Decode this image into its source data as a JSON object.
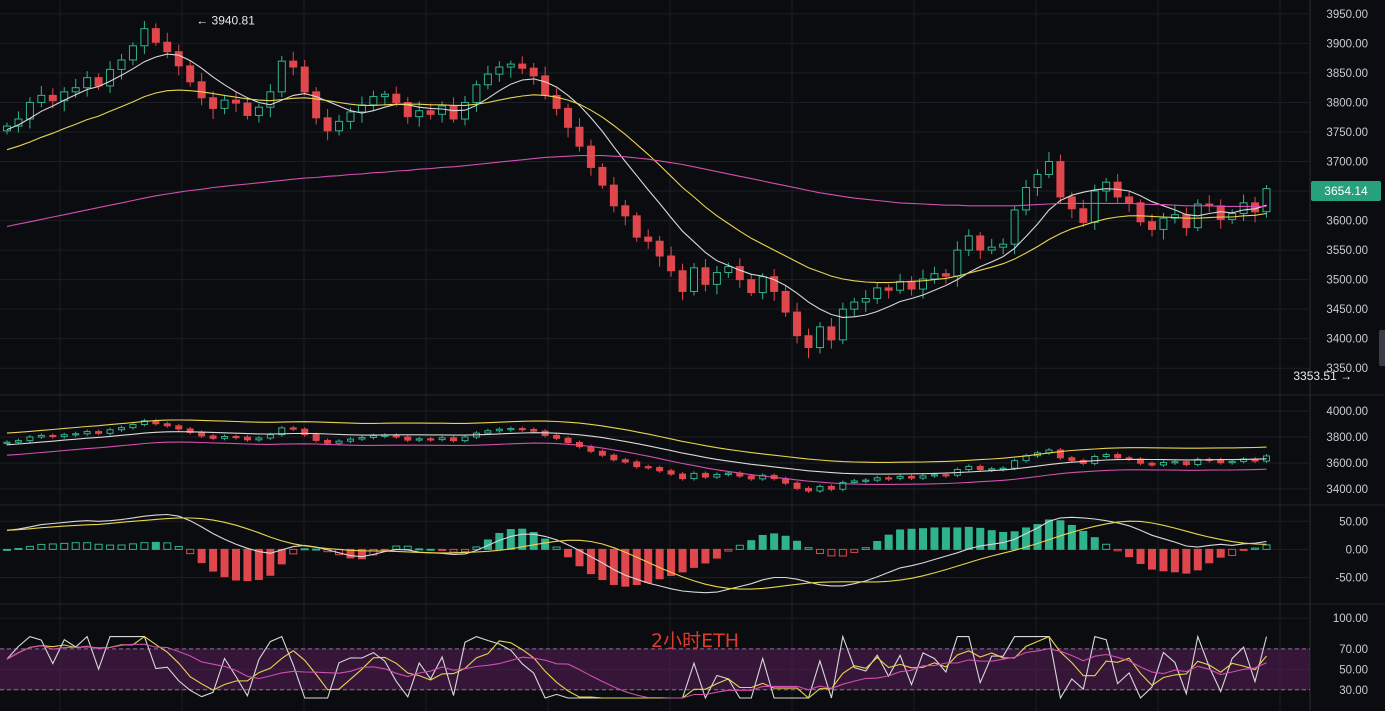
{
  "colors": {
    "background": "#0b0c0f",
    "grid": "#1b1e24",
    "up": "#2fb38c",
    "down": "#e0474c",
    "ma_fast": "#d8d8d8",
    "ma_mid": "#e8d44d",
    "ma_slow": "#d04fb0",
    "rsi_band": "#5a1f5c",
    "badge": "#26a17b",
    "watermark": "#e03a2f"
  },
  "watermark": {
    "text": "2小时ETH"
  },
  "price_badge": {
    "text": "3654.14"
  },
  "chart_data": [
    {
      "type": "candlestick",
      "panel": "price",
      "ylim": [
        3330,
        3960
      ],
      "y_ticks": [
        "3950.00",
        "3900.00",
        "3850.00",
        "3800.00",
        "3750.00",
        "3700.00",
        "3650.00",
        "3600.00",
        "3550.00",
        "3500.00",
        "3450.00",
        "3400.00",
        "3350.00"
      ],
      "y_tick_values": [
        3950,
        3900,
        3850,
        3800,
        3750,
        3700,
        3650,
        3600,
        3550,
        3500,
        3450,
        3400,
        3350
      ],
      "last_price": 3654.14,
      "annotations": [
        {
          "text": "← 3940.81",
          "value": 3940.81,
          "bar": 16,
          "kind": "high"
        },
        {
          "text": "3353.51 →",
          "value": 3353.51,
          "bar": 118,
          "kind": "low"
        }
      ],
      "closes": [
        3760,
        3772,
        3800,
        3812,
        3803,
        3818,
        3825,
        3842,
        3828,
        3856,
        3872,
        3896,
        3925,
        3902,
        3886,
        3862,
        3835,
        3808,
        3790,
        3804,
        3799,
        3778,
        3792,
        3818,
        3870,
        3860,
        3818,
        3774,
        3752,
        3768,
        3784,
        3796,
        3810,
        3814,
        3800,
        3776,
        3786,
        3780,
        3794,
        3772,
        3800,
        3830,
        3848,
        3860,
        3865,
        3858,
        3845,
        3812,
        3790,
        3758,
        3726,
        3690,
        3660,
        3625,
        3608,
        3572,
        3565,
        3540,
        3515,
        3480,
        3520,
        3492,
        3512,
        3522,
        3500,
        3478,
        3505,
        3480,
        3445,
        3405,
        3385,
        3420,
        3398,
        3450,
        3462,
        3468,
        3486,
        3482,
        3497,
        3484,
        3501,
        3510,
        3506,
        3550,
        3574,
        3550,
        3555,
        3560,
        3618,
        3656,
        3678,
        3700,
        3640,
        3620,
        3597,
        3650,
        3665,
        3640,
        3630,
        3598,
        3585,
        3604,
        3610,
        3588,
        3628,
        3625,
        3602,
        3612,
        3630,
        3615,
        3654.14
      ],
      "ma_fast": [
        3754,
        3762,
        3773,
        3785,
        3794,
        3804,
        3813,
        3822,
        3827,
        3836,
        3846,
        3857,
        3869,
        3877,
        3882,
        3880,
        3871,
        3858,
        3843,
        3830,
        3818,
        3808,
        3800,
        3796,
        3804,
        3812,
        3815,
        3810,
        3802,
        3794,
        3786,
        3782,
        3786,
        3792,
        3797,
        3796,
        3792,
        3790,
        3789,
        3786,
        3787,
        3795,
        3807,
        3820,
        3831,
        3838,
        3840,
        3835,
        3826,
        3812,
        3795,
        3774,
        3751,
        3725,
        3700,
        3676,
        3652,
        3629,
        3605,
        3582,
        3564,
        3546,
        3532,
        3524,
        3516,
        3509,
        3506,
        3500,
        3490,
        3477,
        3462,
        3450,
        3441,
        3436,
        3437,
        3440,
        3446,
        3454,
        3463,
        3468,
        3474,
        3482,
        3490,
        3500,
        3512,
        3522,
        3530,
        3539,
        3553,
        3573,
        3594,
        3618,
        3634,
        3643,
        3648,
        3652,
        3654,
        3653,
        3650,
        3642,
        3632,
        3625,
        3618,
        3610,
        3608,
        3612,
        3615,
        3613,
        3618,
        3620,
        3626
      ],
      "ma_mid": [
        3720,
        3726,
        3733,
        3741,
        3748,
        3756,
        3763,
        3771,
        3777,
        3785,
        3793,
        3801,
        3810,
        3816,
        3820,
        3821,
        3820,
        3818,
        3815,
        3812,
        3809,
        3806,
        3804,
        3803,
        3805,
        3807,
        3808,
        3806,
        3803,
        3800,
        3797,
        3795,
        3795,
        3796,
        3797,
        3797,
        3797,
        3796,
        3796,
        3795,
        3795,
        3797,
        3800,
        3804,
        3808,
        3811,
        3813,
        3812,
        3809,
        3804,
        3797,
        3787,
        3775,
        3761,
        3746,
        3729,
        3712,
        3694,
        3675,
        3656,
        3640,
        3623,
        3608,
        3595,
        3582,
        3570,
        3560,
        3550,
        3540,
        3530,
        3520,
        3513,
        3506,
        3501,
        3498,
        3496,
        3495,
        3495,
        3496,
        3497,
        3498,
        3500,
        3502,
        3506,
        3511,
        3516,
        3521,
        3527,
        3535,
        3545,
        3556,
        3568,
        3578,
        3586,
        3592,
        3598,
        3603,
        3606,
        3608,
        3608,
        3607,
        3606,
        3605,
        3604,
        3604,
        3605,
        3606,
        3606,
        3608,
        3609,
        3612
      ],
      "ma_slow": [
        3590,
        3594,
        3598,
        3602,
        3606,
        3610,
        3614,
        3618,
        3622,
        3626,
        3630,
        3634,
        3638,
        3642,
        3645,
        3648,
        3651,
        3653,
        3656,
        3658,
        3660,
        3662,
        3664,
        3666,
        3668,
        3670,
        3672,
        3673,
        3675,
        3676,
        3678,
        3679,
        3681,
        3682,
        3684,
        3685,
        3687,
        3688,
        3690,
        3691,
        3693,
        3695,
        3697,
        3699,
        3701,
        3703,
        3705,
        3707,
        3708,
        3709,
        3710,
        3710,
        3710,
        3709,
        3708,
        3706,
        3704,
        3701,
        3698,
        3695,
        3691,
        3687,
        3683,
        3679,
        3675,
        3671,
        3667,
        3663,
        3659,
        3655,
        3651,
        3647,
        3644,
        3641,
        3638,
        3636,
        3634,
        3632,
        3630,
        3629,
        3628,
        3627,
        3626,
        3626,
        3625,
        3625,
        3625,
        3625,
        3625,
        3626,
        3627,
        3628,
        3629,
        3629,
        3629,
        3629,
        3629,
        3629,
        3629,
        3628,
        3627,
        3627,
        3626,
        3625,
        3625,
        3625,
        3624,
        3624,
        3624,
        3624,
        3624
      ]
    },
    {
      "type": "candlestick",
      "panel": "weekly_overview",
      "ylim": [
        3300,
        4100
      ],
      "y_ticks": [
        "4000.00",
        "3800.00",
        "3600.00",
        "3400.00"
      ],
      "y_tick_values": [
        4000,
        3800,
        3600,
        3400
      ]
    },
    {
      "type": "bar",
      "panel": "macd",
      "ylim": [
        -90,
        70
      ],
      "y_ticks": [
        "50.00",
        "0.00",
        "-50.00"
      ],
      "y_tick_values": [
        50,
        0,
        -50
      ]
    },
    {
      "type": "line",
      "panel": "rsi",
      "ylim": [
        20,
        110
      ],
      "y_ticks": [
        "100.00",
        "70.00",
        "50.00",
        "30.00"
      ],
      "y_tick_values": [
        100,
        70,
        50,
        30
      ],
      "band": [
        30,
        70
      ]
    }
  ]
}
